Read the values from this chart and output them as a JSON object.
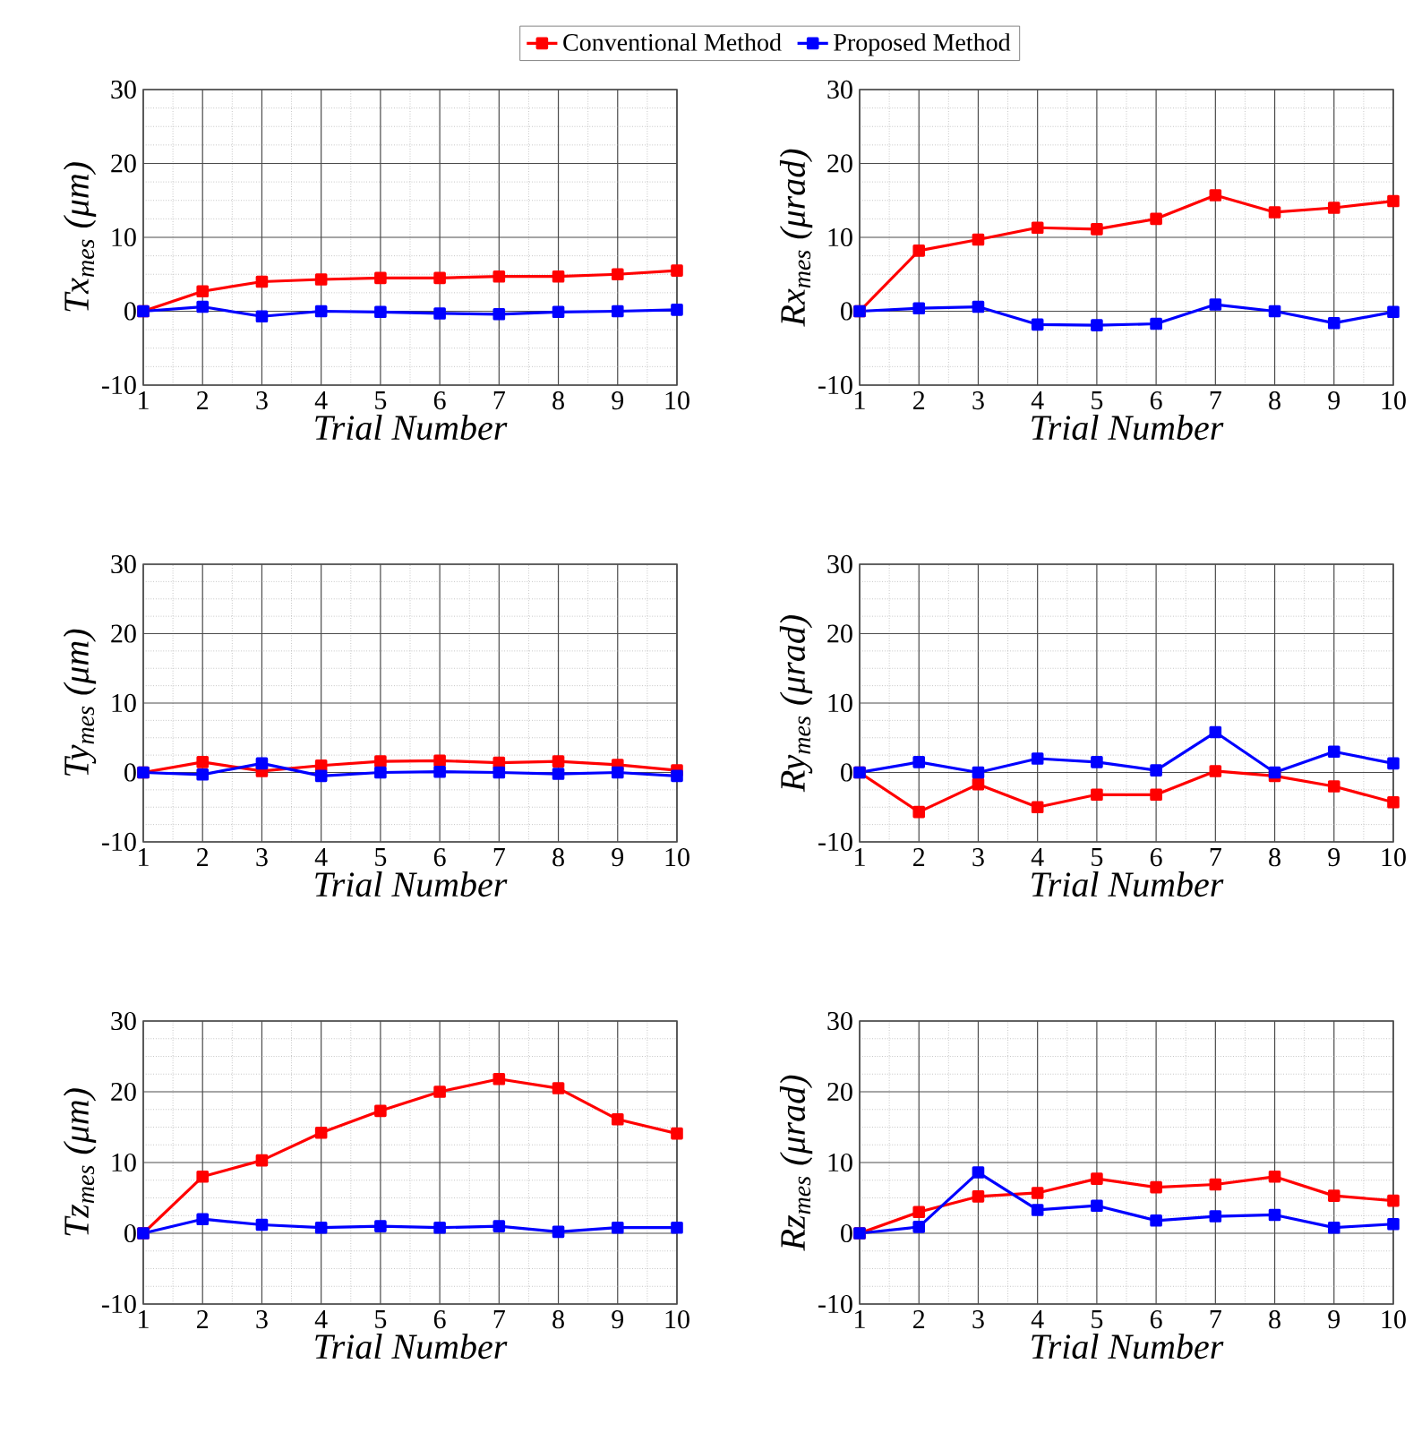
{
  "chart_data": [
    {
      "type": "line",
      "xlabel": "Trial Number",
      "ylabel": "Tx$_{mes}$ (μm)",
      "x": [
        1,
        2,
        3,
        4,
        5,
        6,
        7,
        8,
        9,
        10
      ],
      "xlim": [
        1,
        10
      ],
      "xticks": [
        1,
        2,
        3,
        4,
        5,
        6,
        7,
        8,
        9,
        10
      ],
      "ylim": [
        -10,
        30
      ],
      "yticks": [
        -10,
        0,
        10,
        20,
        30
      ],
      "grid": true,
      "marker": "square",
      "line_style": "solid",
      "legend": "top",
      "series": [
        {
          "name": "Conventional Method",
          "color": "#ff0000",
          "values": [
            0,
            2.7,
            4,
            4.3,
            4.5,
            4.5,
            4.7,
            4.7,
            5,
            5.5
          ]
        },
        {
          "name": "Proposed Method",
          "color": "#0000ff",
          "values": [
            0,
            0.6,
            -0.7,
            0,
            -0.1,
            -0.3,
            -0.4,
            -0.1,
            0,
            0.2
          ]
        }
      ]
    },
    {
      "type": "line",
      "xlabel": "Trial Number",
      "ylabel": "Rx$_{mes}$ (μrad)",
      "x": [
        1,
        2,
        3,
        4,
        5,
        6,
        7,
        8,
        9,
        10
      ],
      "xlim": [
        1,
        10
      ],
      "xticks": [
        1,
        2,
        3,
        4,
        5,
        6,
        7,
        8,
        9,
        10
      ],
      "ylim": [
        -10,
        30
      ],
      "yticks": [
        -10,
        0,
        10,
        20,
        30
      ],
      "grid": true,
      "marker": "square",
      "line_style": "solid",
      "series": [
        {
          "color": "#ff0000",
          "values": [
            0,
            8.2,
            9.7,
            11.3,
            11.1,
            12.5,
            15.7,
            13.4,
            14,
            14.9
          ]
        },
        {
          "color": "#0000ff",
          "values": [
            0,
            0.4,
            0.6,
            -1.8,
            -1.9,
            -1.7,
            0.9,
            0,
            -1.6,
            -0.1
          ]
        }
      ]
    },
    {
      "type": "line",
      "xlabel": "Trial Number",
      "ylabel": "Ty$_{mes}$ (μm)",
      "x": [
        1,
        2,
        3,
        4,
        5,
        6,
        7,
        8,
        9,
        10
      ],
      "xlim": [
        1,
        10
      ],
      "xticks": [
        1,
        2,
        3,
        4,
        5,
        6,
        7,
        8,
        9,
        10
      ],
      "ylim": [
        -10,
        30
      ],
      "yticks": [
        -10,
        0,
        10,
        20,
        30
      ],
      "grid": true,
      "marker": "square",
      "line_style": "solid",
      "series": [
        {
          "color": "#ff0000",
          "values": [
            0,
            1.5,
            0.2,
            1,
            1.6,
            1.7,
            1.4,
            1.6,
            1.1,
            0.3
          ]
        },
        {
          "color": "#0000ff",
          "values": [
            0,
            -0.3,
            1.3,
            -0.5,
            0,
            0.1,
            0,
            -0.2,
            0,
            -0.5
          ]
        }
      ]
    },
    {
      "type": "line",
      "xlabel": "Trial Number",
      "ylabel": "Ry$_{mes}$ (μrad)",
      "x": [
        1,
        2,
        3,
        4,
        5,
        6,
        7,
        8,
        9,
        10
      ],
      "xlim": [
        1,
        10
      ],
      "xticks": [
        1,
        2,
        3,
        4,
        5,
        6,
        7,
        8,
        9,
        10
      ],
      "ylim": [
        -10,
        30
      ],
      "yticks": [
        -10,
        0,
        10,
        20,
        30
      ],
      "grid": true,
      "marker": "square",
      "line_style": "solid",
      "series": [
        {
          "color": "#ff0000",
          "values": [
            0,
            -5.7,
            -1.7,
            -5,
            -3.2,
            -3.2,
            0.2,
            -0.5,
            -2,
            -4.3
          ]
        },
        {
          "color": "#0000ff",
          "values": [
            0,
            1.5,
            0,
            2,
            1.5,
            0.3,
            5.8,
            0,
            3,
            1.3
          ]
        }
      ]
    },
    {
      "type": "line",
      "xlabel": "Trial Number",
      "ylabel": "Tz$_{mes}$ (μm)",
      "x": [
        1,
        2,
        3,
        4,
        5,
        6,
        7,
        8,
        9,
        10
      ],
      "xlim": [
        1,
        10
      ],
      "xticks": [
        1,
        2,
        3,
        4,
        5,
        6,
        7,
        8,
        9,
        10
      ],
      "ylim": [
        -10,
        30
      ],
      "yticks": [
        -10,
        0,
        10,
        20,
        30
      ],
      "grid": true,
      "marker": "square",
      "line_style": "solid",
      "series": [
        {
          "color": "#ff0000",
          "values": [
            0,
            8,
            10.3,
            14.2,
            17.3,
            20,
            21.8,
            20.5,
            16.1,
            14.1
          ]
        },
        {
          "color": "#0000ff",
          "values": [
            0,
            2,
            1.2,
            0.8,
            1,
            0.8,
            1,
            0.2,
            0.8,
            0.8
          ]
        }
      ]
    },
    {
      "type": "line",
      "xlabel": "Trial Number",
      "ylabel": "Rz$_{mes}$ (μrad)",
      "x": [
        1,
        2,
        3,
        4,
        5,
        6,
        7,
        8,
        9,
        10
      ],
      "xlim": [
        1,
        10
      ],
      "xticks": [
        1,
        2,
        3,
        4,
        5,
        6,
        7,
        8,
        9,
        10
      ],
      "ylim": [
        -10,
        30
      ],
      "yticks": [
        -10,
        0,
        10,
        20,
        30
      ],
      "grid": true,
      "marker": "square",
      "line_style": "solid",
      "series": [
        {
          "color": "#ff0000",
          "values": [
            0,
            3,
            5.2,
            5.7,
            7.7,
            6.5,
            6.9,
            8,
            5.3,
            4.6
          ]
        },
        {
          "color": "#0000ff",
          "values": [
            0,
            0.9,
            8.6,
            3.3,
            3.9,
            1.8,
            2.4,
            2.6,
            0.8,
            1.3
          ]
        }
      ]
    }
  ]
}
